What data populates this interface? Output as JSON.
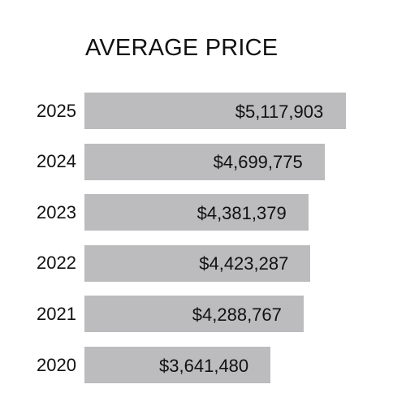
{
  "chart_data": {
    "type": "bar",
    "orientation": "horizontal",
    "title": "AVERAGE PRICE",
    "categories": [
      "2025",
      "2024",
      "2023",
      "2022",
      "2021",
      "2020"
    ],
    "values": [
      5117903,
      4699775,
      4381379,
      4423287,
      4288767,
      3641480
    ],
    "data_labels": [
      "$5,117,903",
      "$4,699,775",
      "$4,381,379",
      "$4,423,287",
      "$4,288,767",
      "$3,641,480"
    ],
    "xlabel": "",
    "ylabel": "",
    "grid": false,
    "legend": "none",
    "bar_color": "#bcbcbe",
    "text_color": "#111111"
  }
}
